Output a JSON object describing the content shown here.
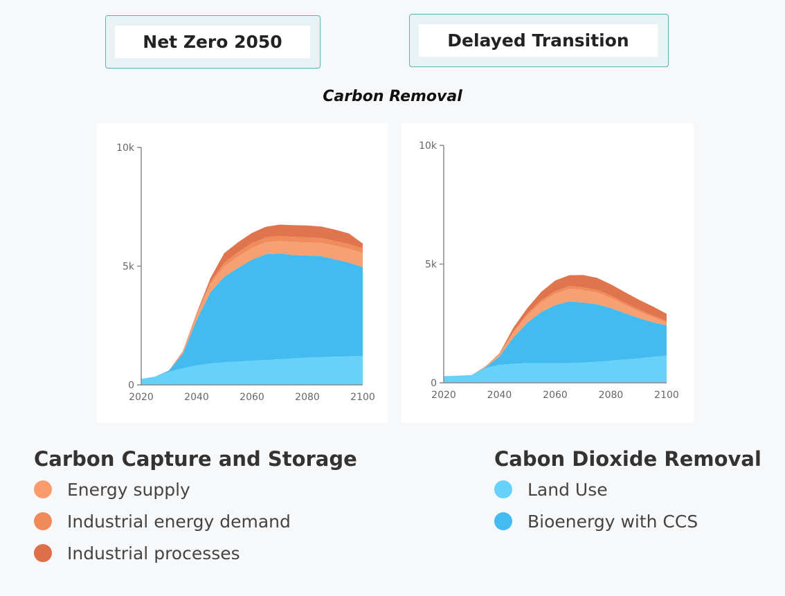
{
  "scenarios": {
    "left_label": "Net Zero 2050",
    "right_label": "Delayed Transition"
  },
  "page_title": "Carbon Removal",
  "colors": {
    "land_use": "#66d2fa",
    "bioenergy_ccs": "#43bbee",
    "energy_supply": "#f7a172",
    "industrial_energy_demand": "#f08c5b",
    "industrial_processes": "#e0744d"
  },
  "legend": {
    "ccs": {
      "title": "Carbon Capture and Storage",
      "items": [
        {
          "label": "Energy supply",
          "color": "#f99b6a",
          "icon": "circle-icon"
        },
        {
          "label": "Industrial energy demand",
          "color": "#f08a58",
          "icon": "circle-icon"
        },
        {
          "label": "Industrial processes",
          "color": "#de7049",
          "icon": "circle-icon"
        }
      ]
    },
    "cdr": {
      "title": "Cabon Dioxide Removal",
      "items": [
        {
          "label": "Land Use",
          "color": "#66d2fa",
          "icon": "circle-icon"
        },
        {
          "label": "Bioenergy with CCS",
          "color": "#43bbee",
          "icon": "circle-icon"
        }
      ]
    }
  },
  "chart_data": [
    {
      "type": "area",
      "stacked": true,
      "scenario": "Net Zero 2050",
      "x": [
        2020,
        2025,
        2030,
        2035,
        2040,
        2045,
        2050,
        2055,
        2060,
        2065,
        2070,
        2075,
        2080,
        2085,
        2090,
        2095,
        2100
      ],
      "xticks": [
        "2020",
        "2040",
        "2060",
        "2080",
        "2100"
      ],
      "yticks": [
        "0",
        "5k",
        "10k"
      ],
      "ylim": [
        0,
        10000
      ],
      "series": [
        {
          "name": "Land Use",
          "values": [
            250,
            350,
            550,
            700,
            820,
            900,
            950,
            980,
            1020,
            1050,
            1080,
            1120,
            1150,
            1170,
            1190,
            1200,
            1210
          ]
        },
        {
          "name": "Bioenergy with CCS",
          "values": [
            0,
            0,
            50,
            600,
            1900,
            3000,
            3600,
            3950,
            4250,
            4450,
            4450,
            4350,
            4300,
            4250,
            4100,
            3950,
            3750
          ]
        },
        {
          "name": "Energy supply",
          "values": [
            0,
            0,
            10,
            60,
            200,
            350,
            450,
            480,
            500,
            510,
            530,
            550,
            550,
            560,
            570,
            580,
            590
          ]
        },
        {
          "name": "Industrial energy demand",
          "values": [
            0,
            0,
            0,
            30,
            60,
            100,
            150,
            180,
            200,
            200,
            210,
            210,
            210,
            210,
            200,
            200,
            200
          ]
        },
        {
          "name": "Industrial processes",
          "values": [
            0,
            0,
            0,
            20,
            40,
            150,
            400,
            420,
            430,
            450,
            480,
            500,
            500,
            480,
            480,
            450,
            200
          ]
        }
      ]
    },
    {
      "type": "area",
      "stacked": true,
      "scenario": "Delayed Transition",
      "x": [
        2020,
        2025,
        2030,
        2035,
        2040,
        2045,
        2050,
        2055,
        2060,
        2065,
        2070,
        2075,
        2080,
        2085,
        2090,
        2095,
        2100
      ],
      "xticks": [
        "2020",
        "2040",
        "2060",
        "2080",
        "2100"
      ],
      "yticks": [
        "0",
        "5k",
        "10k"
      ],
      "ylim": [
        0,
        10000
      ],
      "series": [
        {
          "name": "Land Use",
          "values": [
            280,
            300,
            330,
            620,
            760,
            800,
            830,
            830,
            820,
            830,
            850,
            880,
            930,
            980,
            1030,
            1090,
            1150
          ]
        },
        {
          "name": "Bioenergy with CCS",
          "values": [
            0,
            0,
            0,
            30,
            350,
            1100,
            1700,
            2150,
            2450,
            2600,
            2530,
            2430,
            2220,
            1950,
            1700,
            1460,
            1270
          ]
        },
        {
          "name": "Energy supply",
          "values": [
            0,
            0,
            0,
            20,
            80,
            220,
            320,
            410,
            480,
            530,
            520,
            490,
            420,
            350,
            280,
            220,
            120
          ]
        },
        {
          "name": "Industrial energy demand",
          "values": [
            0,
            0,
            0,
            10,
            20,
            50,
            70,
            90,
            110,
            120,
            120,
            110,
            100,
            90,
            80,
            70,
            60
          ]
        },
        {
          "name": "Industrial processes",
          "values": [
            0,
            0,
            0,
            10,
            30,
            150,
            230,
            350,
            450,
            450,
            520,
            510,
            480,
            450,
            410,
            380,
            310
          ]
        }
      ]
    }
  ]
}
